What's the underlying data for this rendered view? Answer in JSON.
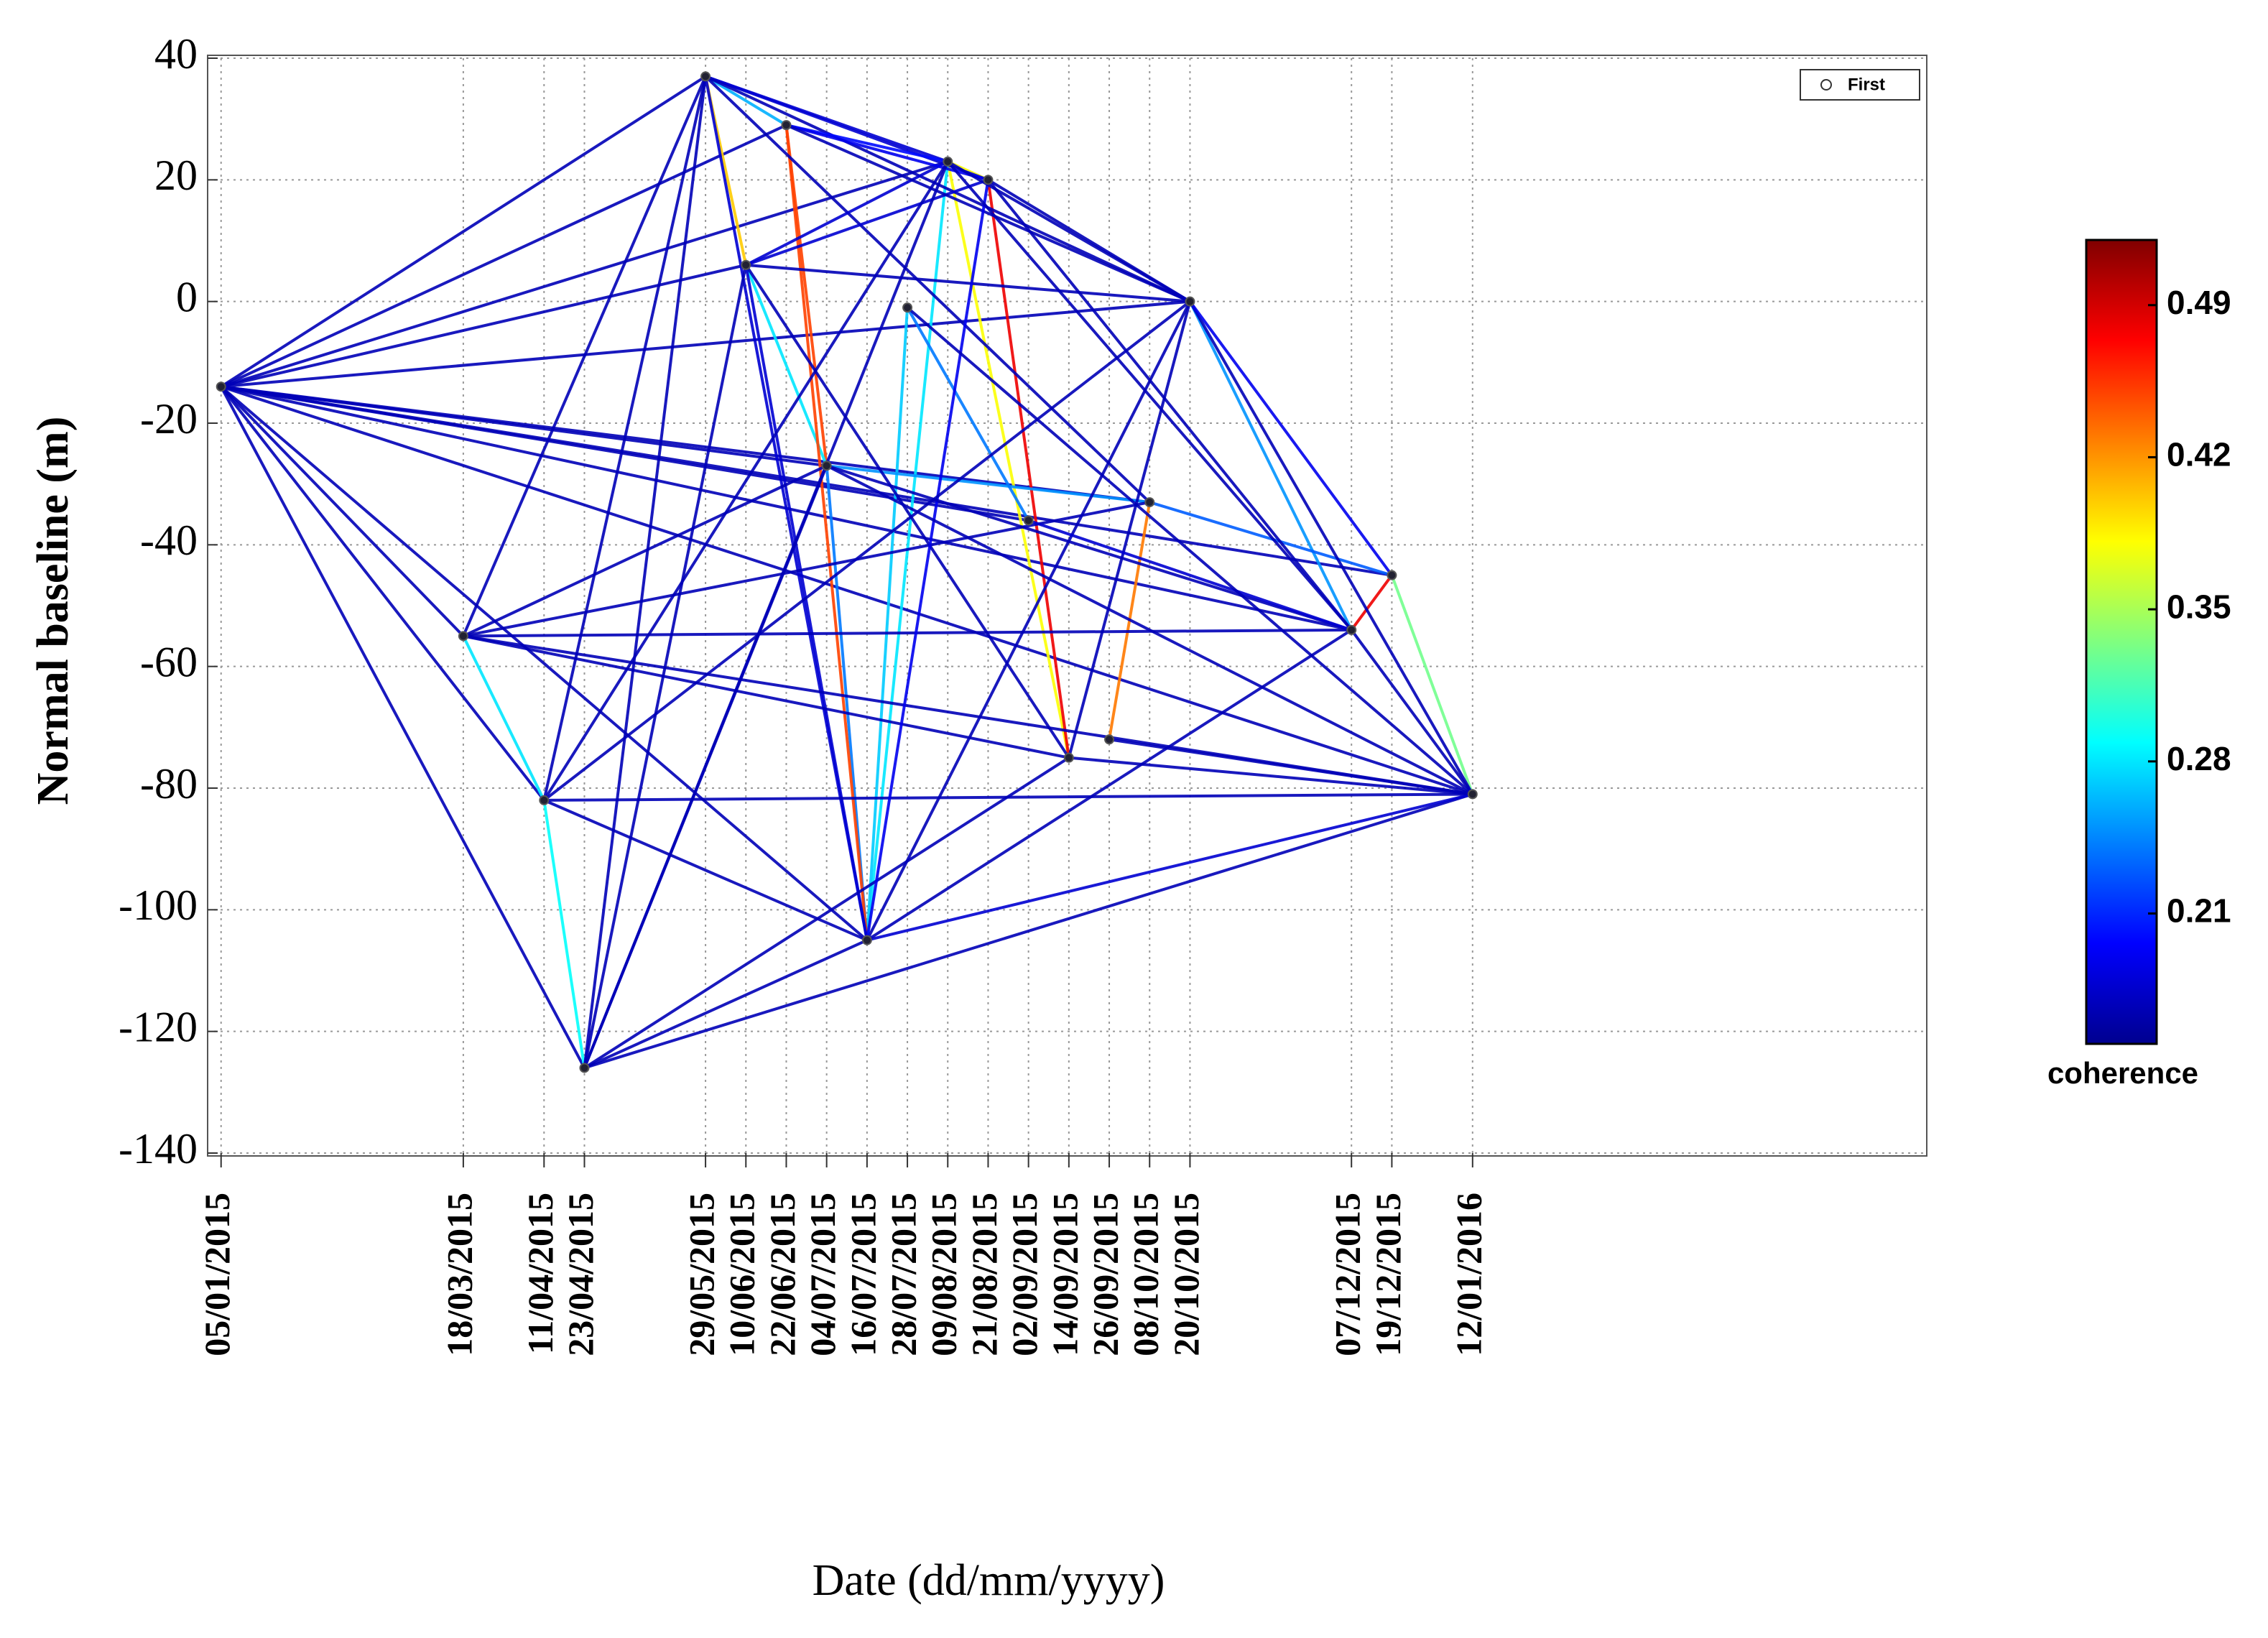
{
  "chart_data": {
    "type": "network",
    "ylabel": "Normal baseline (m)",
    "xlabel": "Date (dd/mm/yyyy)",
    "colorbar_label": "coherence",
    "legend_label": "First",
    "legend_position": "upper right",
    "grid": true,
    "colormap": "jet",
    "x": [
      "05/01/2015",
      "18/03/2015",
      "11/04/2015",
      "23/04/2015",
      "29/05/2015",
      "10/06/2015",
      "22/06/2015",
      "04/07/2015",
      "16/07/2015",
      "28/07/2015",
      "09/08/2015",
      "21/08/2015",
      "02/09/2015",
      "14/09/2015",
      "26/09/2015",
      "08/10/2015",
      "20/10/2015",
      "07/12/2015",
      "19/12/2015",
      "12/01/2016"
    ],
    "values": [
      -14,
      -55,
      -82,
      -126,
      37,
      6,
      29,
      -27,
      -105,
      -1,
      23,
      20,
      -36,
      -75,
      -72,
      -33,
      0,
      -54,
      -45,
      -81
    ],
    "xlim": [
      "01/01/2015",
      "26/05/2016"
    ],
    "ylim": [
      -140,
      40
    ],
    "yticks": [
      -140,
      -120,
      -100,
      -80,
      -60,
      -40,
      -20,
      0,
      20,
      40
    ],
    "clim": [
      0.15,
      0.52
    ],
    "cticks": [
      0.21,
      0.28,
      0.35,
      0.42,
      0.49
    ],
    "edges": [
      [
        0,
        4,
        0.17
      ],
      [
        0,
        5,
        0.17
      ],
      [
        0,
        6,
        0.17
      ],
      [
        0,
        10,
        0.17
      ],
      [
        0,
        16,
        0.17
      ],
      [
        0,
        7,
        0.17
      ],
      [
        0,
        15,
        0.17
      ],
      [
        0,
        17,
        0.17
      ],
      [
        0,
        18,
        0.17
      ],
      [
        0,
        1,
        0.17
      ],
      [
        0,
        2,
        0.17
      ],
      [
        0,
        3,
        0.17
      ],
      [
        0,
        8,
        0.17
      ],
      [
        0,
        19,
        0.17
      ],
      [
        0,
        12,
        0.17
      ],
      [
        4,
        5,
        0.4
      ],
      [
        4,
        6,
        0.26
      ],
      [
        6,
        7,
        0.45
      ],
      [
        5,
        7,
        0.28
      ],
      [
        10,
        11,
        0.38
      ],
      [
        10,
        13,
        0.38
      ],
      [
        11,
        13,
        0.48
      ],
      [
        14,
        15,
        0.43
      ],
      [
        18,
        17,
        0.48
      ],
      [
        18,
        19,
        0.33
      ],
      [
        1,
        2,
        0.28
      ],
      [
        2,
        3,
        0.29
      ],
      [
        8,
        10,
        0.28
      ],
      [
        8,
        9,
        0.27
      ],
      [
        7,
        15,
        0.25
      ],
      [
        8,
        7,
        0.24
      ],
      [
        9,
        12,
        0.24
      ],
      [
        6,
        8,
        0.45
      ],
      [
        16,
        17,
        0.25
      ],
      [
        15,
        18,
        0.23
      ],
      [
        4,
        10,
        0.18
      ],
      [
        4,
        11,
        0.18
      ],
      [
        4,
        16,
        0.17
      ],
      [
        4,
        3,
        0.17
      ],
      [
        4,
        1,
        0.17
      ],
      [
        4,
        2,
        0.17
      ],
      [
        4,
        8,
        0.18
      ],
      [
        4,
        15,
        0.17
      ],
      [
        5,
        16,
        0.17
      ],
      [
        5,
        10,
        0.18
      ],
      [
        5,
        11,
        0.18
      ],
      [
        5,
        3,
        0.17
      ],
      [
        5,
        8,
        0.18
      ],
      [
        5,
        13,
        0.17
      ],
      [
        6,
        10,
        0.2
      ],
      [
        6,
        11,
        0.19
      ],
      [
        6,
        16,
        0.17
      ],
      [
        1,
        7,
        0.17
      ],
      [
        1,
        15,
        0.17
      ],
      [
        1,
        17,
        0.17
      ],
      [
        1,
        19,
        0.17
      ],
      [
        1,
        13,
        0.17
      ],
      [
        2,
        19,
        0.17
      ],
      [
        2,
        8,
        0.17
      ],
      [
        2,
        10,
        0.17
      ],
      [
        3,
        8,
        0.17
      ],
      [
        3,
        19,
        0.17
      ],
      [
        3,
        13,
        0.17
      ],
      [
        3,
        7,
        0.17
      ],
      [
        8,
        19,
        0.18
      ],
      [
        8,
        16,
        0.17
      ],
      [
        8,
        17,
        0.17
      ],
      [
        8,
        11,
        0.19
      ],
      [
        10,
        16,
        0.17
      ],
      [
        10,
        17,
        0.17
      ],
      [
        11,
        16,
        0.17
      ],
      [
        11,
        17,
        0.17
      ],
      [
        13,
        19,
        0.17
      ],
      [
        13,
        16,
        0.17
      ],
      [
        16,
        19,
        0.17
      ],
      [
        16,
        18,
        0.19
      ],
      [
        17,
        19,
        0.17
      ],
      [
        7,
        17,
        0.17
      ],
      [
        7,
        19,
        0.17
      ],
      [
        12,
        17,
        0.18
      ],
      [
        9,
        19,
        0.17
      ],
      [
        14,
        19,
        0.17
      ],
      [
        3,
        10,
        0.17
      ],
      [
        2,
        16,
        0.17
      ]
    ]
  }
}
